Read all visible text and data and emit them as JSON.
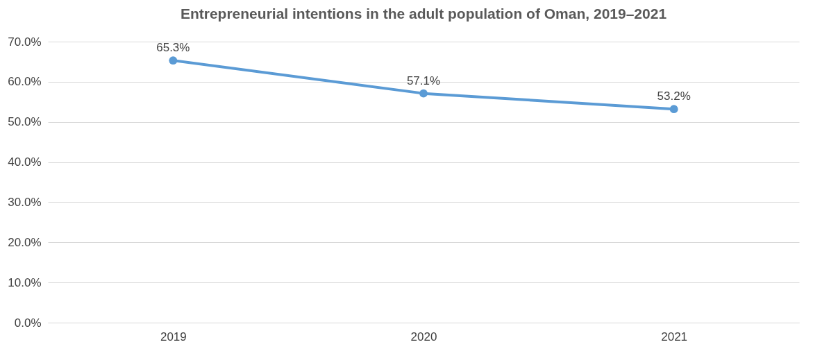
{
  "chart_data": {
    "type": "line",
    "title": "Entrepreneurial intentions in the adult population of Oman, 2019–2021",
    "categories": [
      "2019",
      "2020",
      "2021"
    ],
    "series": [
      {
        "color": "#5b9bd5",
        "values": [
          65.3,
          57.1,
          53.2
        ],
        "value_labels": [
          "65.3%",
          "57.1%",
          "53.2%"
        ]
      }
    ],
    "ylim": [
      0,
      70
    ],
    "yticks": [
      {
        "value": 0,
        "label": "0.0%"
      },
      {
        "value": 10,
        "label": "10.0%"
      },
      {
        "value": 20,
        "label": "20.0%"
      },
      {
        "value": 30,
        "label": "30.0%"
      },
      {
        "value": 40,
        "label": "40.0%"
      },
      {
        "value": 50,
        "label": "50.0%"
      },
      {
        "value": 60,
        "label": "60.0%"
      },
      {
        "value": 70,
        "label": "70.0%"
      }
    ],
    "grid": "y",
    "marker": "circle",
    "line_style": "solid"
  }
}
